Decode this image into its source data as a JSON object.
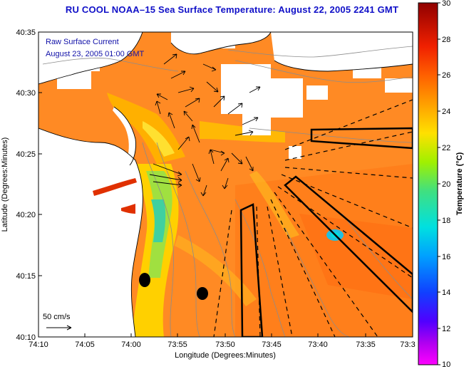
{
  "title": "RU COOL  NOAA–15  Sea Surface Temperature:  August 22, 2005 2241 GMT",
  "overlay": {
    "line1": "Raw Surface Current",
    "line2": "August 23, 2005 01:00 GMT"
  },
  "scale_label": "50 cm/s",
  "axes": {
    "xlabel": "Longitude (Degrees:Minutes)",
    "ylabel": "Latitude (Degrees:Minutes)",
    "xticks": [
      "74:10",
      "74:05",
      "74:00",
      "73:55",
      "73:50",
      "73:45",
      "73:40",
      "73:35",
      "73:3"
    ],
    "yticks": [
      "40:35",
      "40:30",
      "40:25",
      "40:20",
      "40:15",
      "40:10"
    ]
  },
  "colorbar": {
    "label": "Temperature (°C)",
    "ticks": [
      "30",
      "28",
      "26",
      "24",
      "22",
      "20",
      "18",
      "16",
      "14",
      "12",
      "10"
    ],
    "min": 10,
    "max": 30,
    "colors": [
      "#ff00ff",
      "#9000e0",
      "#2020ff",
      "#0090ff",
      "#00e0e0",
      "#40e060",
      "#c0f000",
      "#ffe000",
      "#ff9000",
      "#ff4000",
      "#d01000",
      "#900000"
    ]
  },
  "colors": {
    "ocean": "#ff8a24",
    "land": "#ffffff",
    "title": "#1010c8"
  }
}
